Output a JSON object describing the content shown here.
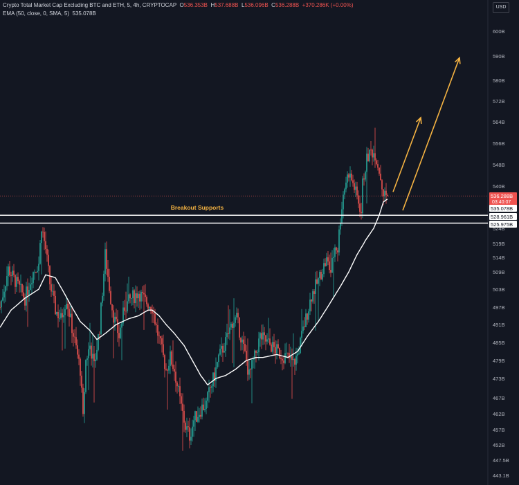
{
  "header": {
    "symbol_title": "Crypto Total Market Cap Excluding BTC and ETH, 5, 4h, CRYPTOCAP",
    "o_label": "O",
    "o_value": "536.353B",
    "h_label": "H",
    "h_value": "537.688B",
    "l_label": "L",
    "l_value": "536.096B",
    "c_label": "C",
    "c_value": "536.288B",
    "change": "+370.286K (+0.00%)",
    "ema_label": "EMA (50, close, 0, SMA, 5)",
    "ema_value": "535.078B",
    "currency_button": "USD"
  },
  "colors": {
    "background": "#131722",
    "up": "#26a69a",
    "down": "#ef5350",
    "ema": "#ffffff",
    "annotation": "#f5b342",
    "support_line": "#ffffff"
  },
  "chart_data": {
    "type": "candlestick",
    "y_unit": "B",
    "y_ticks": [
      "600B",
      "590B",
      "580B",
      "572B",
      "564B",
      "556B",
      "548B",
      "540B",
      "524B",
      "519B",
      "514B",
      "509B",
      "503B",
      "497B",
      "491B",
      "485B",
      "479B",
      "473B",
      "467B",
      "462B",
      "457B",
      "452B",
      "447.5B",
      "443.1B"
    ],
    "price_labels": [
      {
        "text": "536.288B",
        "sub": "03:40:07",
        "kind": "last"
      },
      {
        "text": "535.078B",
        "kind": "ema"
      },
      {
        "text": "528.961B",
        "kind": "support"
      },
      {
        "text": "525.975B",
        "kind": "support"
      }
    ],
    "support_levels": [
      528.961,
      525.975
    ],
    "annotation_text": "Breakout Supports",
    "ema_anchors": [
      [
        0,
        490
      ],
      [
        8,
        496
      ],
      [
        18,
        500
      ],
      [
        28,
        503
      ],
      [
        33,
        508
      ],
      [
        40,
        507
      ],
      [
        46,
        502
      ],
      [
        52,
        497
      ],
      [
        58,
        492
      ],
      [
        65,
        489
      ],
      [
        70,
        486
      ],
      [
        76,
        488
      ],
      [
        84,
        491
      ],
      [
        93,
        493
      ],
      [
        100,
        494
      ],
      [
        107,
        496
      ],
      [
        110,
        496
      ],
      [
        115,
        494
      ],
      [
        120,
        491
      ],
      [
        126,
        488
      ],
      [
        133,
        484
      ],
      [
        139,
        479
      ],
      [
        145,
        474
      ],
      [
        150,
        471
      ],
      [
        156,
        473
      ],
      [
        163,
        474
      ],
      [
        170,
        476
      ],
      [
        178,
        479
      ],
      [
        185,
        480
      ],
      [
        190,
        480
      ],
      [
        200,
        481
      ],
      [
        208,
        480
      ],
      [
        215,
        482
      ],
      [
        222,
        487
      ],
      [
        230,
        492
      ],
      [
        238,
        498
      ],
      [
        246,
        504
      ],
      [
        252,
        509
      ],
      [
        258,
        515
      ],
      [
        264,
        520
      ],
      [
        270,
        524
      ],
      [
        274,
        529
      ],
      [
        277,
        534
      ],
      [
        280,
        535.1
      ]
    ],
    "price_anchors": [
      [
        0,
        497
      ],
      [
        6,
        510
      ],
      [
        12,
        505
      ],
      [
        18,
        500
      ],
      [
        24,
        509
      ],
      [
        28,
        512
      ],
      [
        30,
        525
      ],
      [
        33,
        517
      ],
      [
        36,
        505
      ],
      [
        40,
        496
      ],
      [
        44,
        493
      ],
      [
        48,
        500
      ],
      [
        52,
        490
      ],
      [
        55,
        483
      ],
      [
        58,
        476
      ],
      [
        60,
        460
      ],
      [
        62,
        479
      ],
      [
        65,
        484
      ],
      [
        68,
        477
      ],
      [
        72,
        490
      ],
      [
        76,
        515
      ],
      [
        80,
        500
      ],
      [
        82,
        494
      ],
      [
        86,
        487
      ],
      [
        90,
        497
      ],
      [
        95,
        500
      ],
      [
        100,
        502
      ],
      [
        105,
        499
      ],
      [
        110,
        497
      ],
      [
        113,
        490
      ],
      [
        117,
        482
      ],
      [
        120,
        476
      ],
      [
        123,
        480
      ],
      [
        126,
        476
      ],
      [
        130,
        466
      ],
      [
        134,
        458
      ],
      [
        137,
        455
      ],
      [
        140,
        460
      ],
      [
        143,
        462
      ],
      [
        146,
        464
      ],
      [
        149,
        465
      ],
      [
        152,
        470
      ],
      [
        155,
        474
      ],
      [
        158,
        480
      ],
      [
        163,
        485
      ],
      [
        168,
        492
      ],
      [
        171,
        493
      ],
      [
        174,
        487
      ],
      [
        177,
        481
      ],
      [
        180,
        474
      ],
      [
        184,
        480
      ],
      [
        188,
        487
      ],
      [
        193,
        485
      ],
      [
        198,
        483
      ],
      [
        203,
        481
      ],
      [
        208,
        480
      ],
      [
        212,
        478
      ],
      [
        215,
        481
      ],
      [
        218,
        487
      ],
      [
        221,
        493
      ],
      [
        225,
        501
      ],
      [
        230,
        506
      ],
      [
        233,
        510
      ],
      [
        236,
        513
      ],
      [
        239,
        509
      ],
      [
        242,
        518
      ],
      [
        244,
        517
      ],
      [
        246,
        528
      ],
      [
        248,
        537
      ],
      [
        250,
        542
      ],
      [
        252,
        545
      ],
      [
        255,
        541
      ],
      [
        258,
        536
      ],
      [
        261,
        530
      ],
      [
        262,
        541
      ],
      [
        265,
        550
      ],
      [
        268,
        553
      ],
      [
        271,
        552
      ],
      [
        274,
        546
      ],
      [
        277,
        537
      ],
      [
        280,
        536.3
      ]
    ],
    "arrows": [
      {
        "from": [
          284,
          537.8
        ],
        "to": [
          304,
          565.6
        ]
      },
      {
        "from": [
          291,
          530.8
        ],
        "to": [
          332,
          589.3
        ]
      }
    ]
  }
}
